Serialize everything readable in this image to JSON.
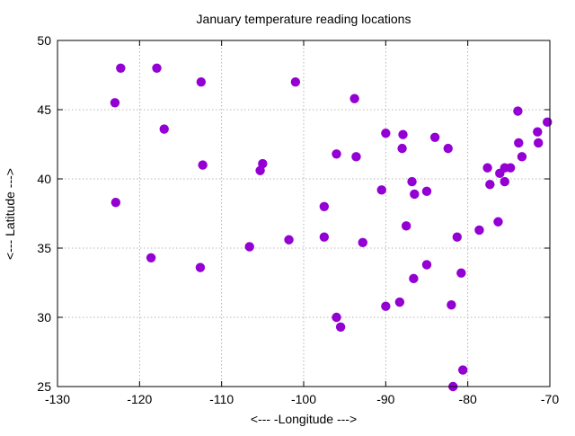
{
  "chart_data": {
    "type": "scatter",
    "title": "January temperature reading locations",
    "xlabel": "<--- -Longitude --->",
    "ylabel": "<--- Latitude --->",
    "xlim": [
      -130,
      -70
    ],
    "ylim": [
      25,
      50
    ],
    "xticks": [
      "-130",
      "-120",
      "-110",
      "-100",
      "-90",
      "-80",
      "-70"
    ],
    "yticks": [
      "25",
      "30",
      "35",
      "40",
      "45",
      "50"
    ],
    "grid": true,
    "marker_color": "#9400d3",
    "points": [
      [
        -122.3,
        48.0
      ],
      [
        -117.9,
        48.0
      ],
      [
        -123.0,
        45.5
      ],
      [
        -117.0,
        43.6
      ],
      [
        -112.5,
        47.0
      ],
      [
        -101.0,
        47.0
      ],
      [
        -93.8,
        45.8
      ],
      [
        -112.3,
        41.0
      ],
      [
        -105.0,
        41.1
      ],
      [
        -105.3,
        40.6
      ],
      [
        -96.0,
        41.8
      ],
      [
        -93.6,
        41.6
      ],
      [
        -90.0,
        43.3
      ],
      [
        -87.9,
        43.2
      ],
      [
        -84.0,
        43.0
      ],
      [
        -82.4,
        42.2
      ],
      [
        -88.0,
        42.2
      ],
      [
        -90.5,
        39.2
      ],
      [
        -86.8,
        39.8
      ],
      [
        -86.5,
        38.9
      ],
      [
        -85.0,
        39.1
      ],
      [
        -122.9,
        38.3
      ],
      [
        -97.5,
        38.0
      ],
      [
        -87.5,
        36.6
      ],
      [
        -97.5,
        35.8
      ],
      [
        -92.8,
        35.4
      ],
      [
        -81.3,
        35.8
      ],
      [
        -78.6,
        36.3
      ],
      [
        -76.3,
        36.9
      ],
      [
        -101.8,
        35.6
      ],
      [
        -106.6,
        35.1
      ],
      [
        -118.6,
        34.3
      ],
      [
        -112.6,
        33.6
      ],
      [
        -85.0,
        33.8
      ],
      [
        -86.6,
        32.8
      ],
      [
        -80.8,
        33.2
      ],
      [
        -88.3,
        31.1
      ],
      [
        -82.0,
        30.9
      ],
      [
        -90.0,
        30.8
      ],
      [
        -96.0,
        30.0
      ],
      [
        -95.5,
        29.3
      ],
      [
        -80.6,
        26.2
      ],
      [
        -81.8,
        25.0
      ],
      [
        -77.6,
        40.8
      ],
      [
        -77.3,
        39.6
      ],
      [
        -76.1,
        40.4
      ],
      [
        -75.5,
        40.8
      ],
      [
        -74.8,
        40.8
      ],
      [
        -75.5,
        39.8
      ],
      [
        -73.8,
        42.6
      ],
      [
        -73.4,
        41.6
      ],
      [
        -73.9,
        44.9
      ],
      [
        -71.5,
        43.4
      ],
      [
        -71.4,
        42.6
      ],
      [
        -70.3,
        44.1
      ]
    ]
  }
}
